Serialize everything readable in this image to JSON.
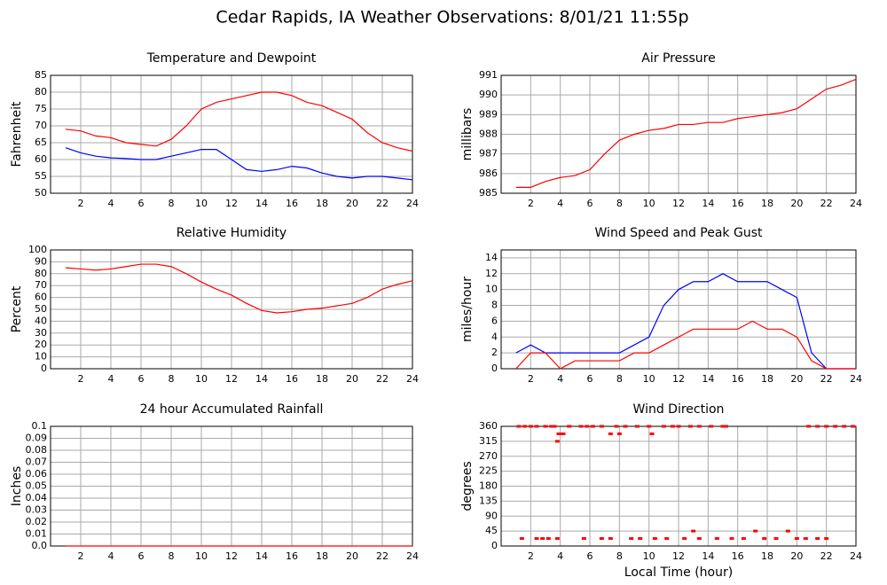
{
  "title": "Cedar Rapids, IA Weather Observations: 8/01/21 11:55p",
  "x_label": "Local Time (hour)",
  "chart_data": [
    {
      "type": "line",
      "title": "Temperature and Dewpoint",
      "y_label": "Fahrenheit",
      "x": [
        1,
        2,
        3,
        4,
        5,
        6,
        7,
        8,
        9,
        10,
        11,
        12,
        13,
        14,
        15,
        16,
        17,
        18,
        19,
        20,
        21,
        22,
        23,
        24
      ],
      "series": [
        {
          "color": "#ff0000",
          "values": [
            69,
            68.5,
            67,
            66.5,
            65,
            64.5,
            64,
            66,
            70,
            75,
            77,
            78,
            79,
            80,
            80,
            79,
            77,
            76,
            74,
            72,
            68,
            65,
            63.5,
            62.5
          ]
        },
        {
          "color": "#0000ff",
          "values": [
            63.5,
            62,
            61,
            60.5,
            60.3,
            60,
            60,
            61,
            62,
            63,
            63,
            60,
            57,
            56.5,
            57,
            58,
            57.5,
            56,
            55,
            54.5,
            55,
            55,
            54.5,
            54
          ]
        }
      ],
      "xlim": [
        0,
        24
      ],
      "xticks": [
        2,
        4,
        6,
        8,
        10,
        12,
        14,
        16,
        18,
        20,
        22,
        24
      ],
      "ylim": [
        50,
        85
      ],
      "yticks": [
        50,
        55,
        60,
        65,
        70,
        75,
        80,
        85
      ],
      "grid": true
    },
    {
      "type": "line",
      "title": "Air Pressure",
      "y_label": "millibars",
      "x": [
        1,
        2,
        3,
        4,
        5,
        6,
        7,
        8,
        9,
        10,
        11,
        12,
        13,
        14,
        15,
        16,
        17,
        18,
        19,
        20,
        21,
        22,
        23,
        24
      ],
      "series": [
        {
          "color": "#ff0000",
          "values": [
            985.3,
            985.3,
            985.6,
            985.8,
            985.9,
            986.2,
            987,
            987.7,
            988,
            988.2,
            988.3,
            988.5,
            988.5,
            988.6,
            988.6,
            988.8,
            988.9,
            989,
            989.1,
            989.3,
            989.8,
            990.3,
            990.5,
            990.8
          ]
        }
      ],
      "xlim": [
        0,
        24
      ],
      "xticks": [
        2,
        4,
        6,
        8,
        10,
        12,
        14,
        16,
        18,
        20,
        22,
        24
      ],
      "ylim": [
        985,
        991
      ],
      "yticks": [
        985,
        986,
        987,
        988,
        989,
        990,
        991
      ],
      "grid": true
    },
    {
      "type": "line",
      "title": "Relative Humidity",
      "y_label": "Percent",
      "x": [
        1,
        2,
        3,
        4,
        5,
        6,
        7,
        8,
        9,
        10,
        11,
        12,
        13,
        14,
        15,
        16,
        17,
        18,
        19,
        20,
        21,
        22,
        23,
        24
      ],
      "series": [
        {
          "color": "#ff0000",
          "values": [
            85,
            84,
            83,
            84,
            86,
            88,
            88,
            86,
            80,
            73,
            67,
            62,
            55,
            49,
            47,
            48,
            50,
            51,
            53,
            55,
            60,
            67,
            71,
            74
          ]
        }
      ],
      "xlim": [
        0,
        24
      ],
      "xticks": [
        2,
        4,
        6,
        8,
        10,
        12,
        14,
        16,
        18,
        20,
        22,
        24
      ],
      "ylim": [
        0,
        100
      ],
      "yticks": [
        0,
        10,
        20,
        30,
        40,
        50,
        60,
        70,
        80,
        90,
        100
      ],
      "grid": true
    },
    {
      "type": "line",
      "title": "Wind Speed and Peak Gust",
      "y_label": "miles/hour",
      "x": [
        1,
        2,
        3,
        4,
        5,
        6,
        7,
        8,
        9,
        10,
        11,
        12,
        13,
        14,
        15,
        16,
        17,
        18,
        19,
        20,
        21,
        22,
        23,
        24
      ],
      "series": [
        {
          "color": "#0000ff",
          "values": [
            2,
            3,
            2,
            2,
            2,
            2,
            2,
            2,
            3,
            4,
            8,
            10,
            11,
            11,
            12,
            11,
            11,
            11,
            10,
            9,
            2,
            0,
            0,
            0
          ]
        },
        {
          "color": "#ff0000",
          "values": [
            0,
            2,
            2,
            0,
            1,
            1,
            1,
            1,
            2,
            2,
            3,
            4,
            5,
            5,
            5,
            5,
            6,
            5,
            5,
            4,
            1,
            0,
            0,
            0
          ]
        }
      ],
      "xlim": [
        0,
        24
      ],
      "xticks": [
        2,
        4,
        6,
        8,
        10,
        12,
        14,
        16,
        18,
        20,
        22,
        24
      ],
      "ylim": [
        0,
        15
      ],
      "yticks": [
        0,
        2,
        4,
        6,
        8,
        10,
        12,
        14
      ],
      "grid": true
    },
    {
      "type": "line",
      "title": "24 hour Accumulated Rainfall",
      "y_label": "Inches",
      "x": [
        1,
        2,
        3,
        4,
        5,
        6,
        7,
        8,
        9,
        10,
        11,
        12,
        13,
        14,
        15,
        16,
        17,
        18,
        19,
        20,
        21,
        22,
        23,
        24
      ],
      "series": [
        {
          "color": "#ff0000",
          "values": [
            0,
            0,
            0,
            0,
            0,
            0,
            0,
            0,
            0,
            0,
            0,
            0,
            0,
            0,
            0,
            0,
            0,
            0,
            0,
            0,
            0,
            0,
            0,
            0
          ]
        }
      ],
      "xlim": [
        0,
        24
      ],
      "xticks": [
        2,
        4,
        6,
        8,
        10,
        12,
        14,
        16,
        18,
        20,
        22,
        24
      ],
      "ylim": [
        0,
        0.1
      ],
      "yticks": [
        {
          "value": 0,
          "label": "0.0"
        },
        0.01,
        0.02,
        0.03,
        0.04,
        0.05,
        0.06,
        0.07,
        0.08,
        0.09,
        {
          "value": 0.1,
          "label": "0.1"
        }
      ],
      "grid": true
    },
    {
      "type": "scatter",
      "title": "Wind Direction",
      "y_label": "degrees",
      "x": [
        1.2,
        1.6,
        2.0,
        2.4,
        3.0,
        3.4,
        3.6,
        3.8,
        3.9,
        4.2,
        4.6,
        5.4,
        5.8,
        6.2,
        6.8,
        7.4,
        7.8,
        8.0,
        8.4,
        9.2,
        10.0,
        10.2,
        11.0,
        11.6,
        12.0,
        12.8,
        13.4,
        14.2,
        15.0,
        15.2,
        20.8,
        21.4,
        22.0,
        22.6,
        23.2,
        23.8,
        1.4,
        2.4,
        2.8,
        3.2,
        3.8,
        5.6,
        6.8,
        7.4,
        8.8,
        9.4,
        10.4,
        11.2,
        12.4,
        13.0,
        13.4,
        14.6,
        15.6,
        16.4,
        17.2,
        17.8,
        18.6,
        19.4,
        20.0,
        20.6,
        21.4,
        22.0
      ],
      "series": [
        {
          "color": "#ff0000",
          "values": [
            360,
            360,
            360,
            360,
            360,
            360,
            360,
            315,
            337.5,
            337.5,
            360,
            360,
            360,
            360,
            360,
            337.5,
            360,
            337.5,
            360,
            360,
            360,
            337.5,
            360,
            360,
            360,
            360,
            360,
            360,
            360,
            360,
            360,
            360,
            360,
            360,
            360,
            360,
            22.5,
            22.5,
            22.5,
            22.5,
            22.5,
            22.5,
            22.5,
            22.5,
            22.5,
            22.5,
            22.5,
            22.5,
            22.5,
            45,
            22.5,
            22.5,
            22.5,
            22.5,
            45,
            22.5,
            22.5,
            45,
            22.5,
            22.5,
            22.5,
            22.5
          ]
        }
      ],
      "xlim": [
        0,
        24
      ],
      "xticks": [
        2,
        4,
        6,
        8,
        10,
        12,
        14,
        16,
        18,
        20,
        22,
        24
      ],
      "ylim": [
        0,
        360
      ],
      "yticks": [
        0,
        45,
        90,
        135,
        180,
        225,
        270,
        315,
        360
      ],
      "grid": true
    }
  ]
}
